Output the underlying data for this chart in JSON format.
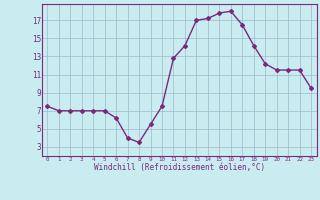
{
  "hours": [
    0,
    1,
    2,
    3,
    4,
    5,
    6,
    7,
    8,
    9,
    10,
    11,
    12,
    13,
    14,
    15,
    16,
    17,
    18,
    19,
    20,
    21,
    22,
    23
  ],
  "values": [
    7.5,
    7.0,
    7.0,
    7.0,
    7.0,
    7.0,
    6.2,
    4.0,
    3.5,
    5.5,
    7.5,
    12.8,
    14.2,
    17.0,
    17.2,
    17.8,
    18.0,
    16.5,
    14.2,
    12.2,
    11.5,
    11.5,
    11.5,
    9.5
  ],
  "line_color": "#7B2A7A",
  "marker": "D",
  "markersize": 2,
  "linewidth": 1.0,
  "bg_color": "#C8ECF0",
  "grid_color": "#A0B8CC",
  "xlabel": "Windchill (Refroidissement éolien,°C)",
  "xlabel_color": "#7B2A7A",
  "tick_color": "#7B2A7A",
  "xlim": [
    -0.5,
    23.5
  ],
  "ylim": [
    2.0,
    18.8
  ],
  "yticks": [
    3,
    5,
    7,
    9,
    11,
    13,
    15,
    17
  ],
  "xticks": [
    0,
    1,
    2,
    3,
    4,
    5,
    6,
    7,
    8,
    9,
    10,
    11,
    12,
    13,
    14,
    15,
    16,
    17,
    18,
    19,
    20,
    21,
    22,
    23
  ]
}
